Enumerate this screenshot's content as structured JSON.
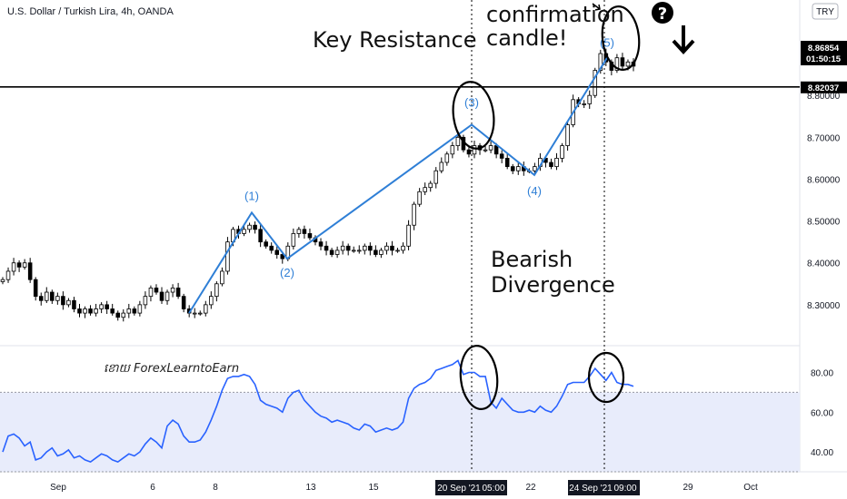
{
  "header": {
    "title": "U.S. Dollar / Turkish Lira, 4h, OANDA",
    "currency_badge": "TRY"
  },
  "annotations": {
    "key_resistance": "Key Resistance",
    "confirmation_line1": "confirmation",
    "confirmation_line2": "candle!",
    "bearish_line1": "Bearish",
    "bearish_line2": "Divergence",
    "watermark": "ខោយ ForexLearntoEarn",
    "question_mark": "?",
    "arrow": "down-arrow-icon"
  },
  "price_boxes": {
    "last_price": "8.86854",
    "countdown": "01:50:15",
    "resistance_price": "8.82037"
  },
  "x_axis_labels": [
    "Sep",
    "6",
    "8",
    "13",
    "15",
    "20 Sep '21",
    "05:00",
    "22",
    "24 Sep '21",
    "09:00",
    "29",
    "Oct"
  ],
  "colors": {
    "up_candle": "#ffffff",
    "down_candle": "#000000",
    "wave_line": "#2f7fd6",
    "rsi_line": "#2962ff",
    "rsi_band": "#e8ecfb",
    "resistance": "#000000"
  },
  "chart_data": [
    {
      "type": "candlestick",
      "title": "U.S. Dollar / Turkish Lira, 4h, OANDA",
      "ylim": [
        8.2,
        8.95
      ],
      "y_ticks": [
        8.3,
        8.4,
        8.5,
        8.6,
        8.7,
        8.8,
        8.9
      ],
      "resistance_level": 8.82037,
      "last_price": 8.86854,
      "closes": [
        8.36,
        8.38,
        8.4,
        8.39,
        8.4,
        8.36,
        8.32,
        8.31,
        8.33,
        8.31,
        8.32,
        8.3,
        8.31,
        8.29,
        8.28,
        8.29,
        8.28,
        8.29,
        8.3,
        8.29,
        8.28,
        8.27,
        8.28,
        8.29,
        8.28,
        8.3,
        8.32,
        8.34,
        8.33,
        8.31,
        8.33,
        8.34,
        8.32,
        8.29,
        8.28,
        8.28,
        8.28,
        8.3,
        8.32,
        8.35,
        8.38,
        8.45,
        8.48,
        8.47,
        8.48,
        8.49,
        8.48,
        8.45,
        8.44,
        8.43,
        8.42,
        8.41,
        8.44,
        8.47,
        8.48,
        8.47,
        8.46,
        8.45,
        8.44,
        8.43,
        8.42,
        8.43,
        8.44,
        8.43,
        8.43,
        8.43,
        8.44,
        8.43,
        8.42,
        8.43,
        8.44,
        8.43,
        8.43,
        8.44,
        8.49,
        8.54,
        8.57,
        8.58,
        8.59,
        8.62,
        8.64,
        8.66,
        8.68,
        8.7,
        8.67,
        8.66,
        8.68,
        8.67,
        8.67,
        8.68,
        8.66,
        8.65,
        8.63,
        8.62,
        8.63,
        8.62,
        8.62,
        8.63,
        8.65,
        8.64,
        8.63,
        8.65,
        8.68,
        8.73,
        8.79,
        8.78,
        8.78,
        8.8,
        8.86,
        8.9,
        8.88,
        8.86,
        8.89,
        8.87,
        8.88,
        8.87
      ],
      "wave_points": [
        {
          "label": "(1)",
          "price": 8.52
        },
        {
          "label": "(2)",
          "price": 8.41
        },
        {
          "label": "(3)",
          "price": 8.73
        },
        {
          "label": "(4)",
          "price": 8.61
        },
        {
          "label": "(5)",
          "price": 8.89
        }
      ]
    },
    {
      "type": "line",
      "title": "",
      "ylim": [
        30,
        88
      ],
      "y_ticks": [
        40,
        60,
        80
      ],
      "band": [
        30,
        70
      ],
      "series": [
        {
          "values": [
            40,
            48,
            49,
            47,
            43,
            45,
            36,
            37,
            40,
            42,
            38,
            39,
            41,
            37,
            38,
            36,
            35,
            37,
            39,
            38,
            36,
            35,
            37,
            39,
            38,
            40,
            44,
            47,
            45,
            42,
            53,
            56,
            54,
            48,
            45,
            45,
            46,
            50,
            56,
            63,
            71,
            77,
            78,
            78,
            79,
            78,
            74,
            66,
            64,
            63,
            62,
            60,
            67,
            70,
            71,
            66,
            63,
            60,
            58,
            57,
            55,
            56,
            55,
            54,
            52,
            51,
            54,
            53,
            50,
            51,
            52,
            51,
            52,
            55,
            67,
            72,
            74,
            75,
            77,
            81,
            82,
            83,
            84,
            86,
            79,
            80,
            80,
            78,
            78,
            65,
            62,
            67,
            64,
            61,
            60,
            60,
            61,
            60,
            63,
            61,
            60,
            63,
            68,
            74,
            75,
            75,
            75,
            78,
            82,
            79,
            76,
            80,
            75,
            74,
            74,
            73
          ]
        }
      ]
    }
  ]
}
